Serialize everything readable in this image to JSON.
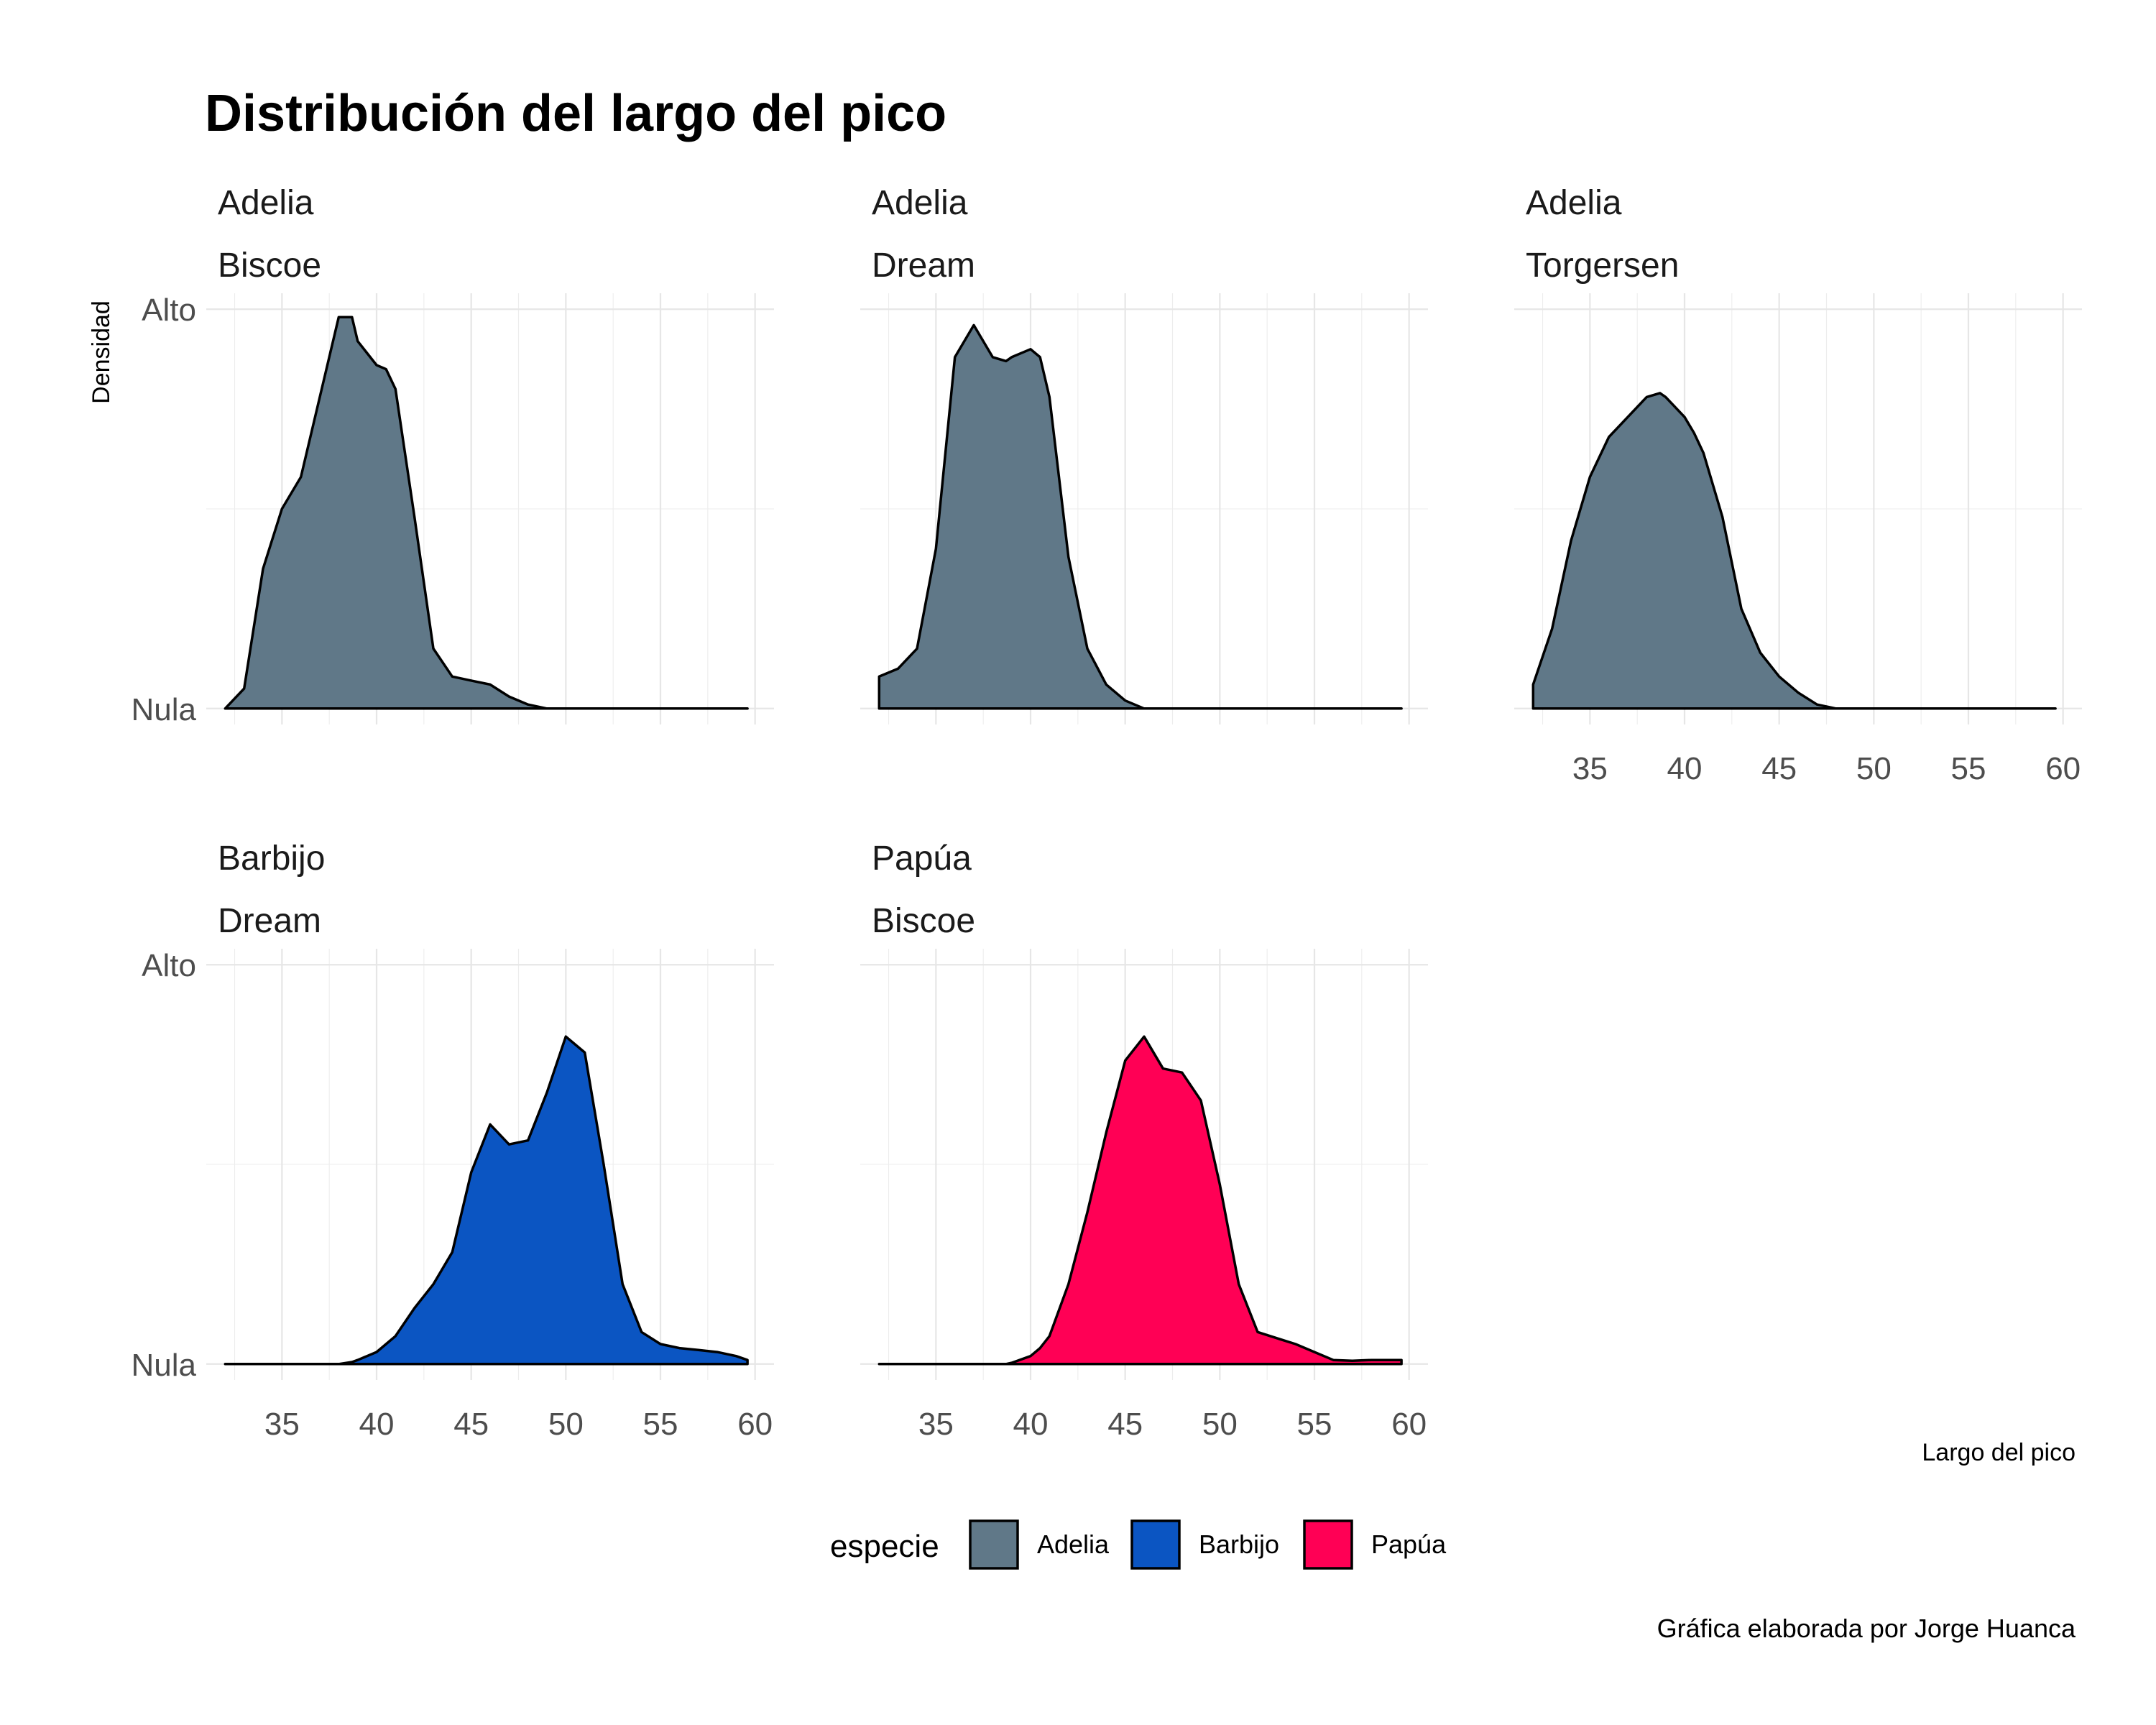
{
  "chart_data": {
    "type": "area",
    "title": "Distribución del largo del pico",
    "xlabel": "Largo del pico",
    "ylabel": "Densidad",
    "xlim": [
      31,
      61
    ],
    "x_ticks": [
      35,
      40,
      45,
      50,
      55,
      60
    ],
    "y_ticks": [
      {
        "value": 0,
        "label": "Nula"
      },
      {
        "value": 1,
        "label": "Alto"
      }
    ],
    "ylim": [
      -0.04,
      1.04
    ],
    "grid": true,
    "legend": {
      "title": "especie",
      "position": "bottom",
      "items": [
        {
          "label": "Adelia",
          "color": "#607888"
        },
        {
          "label": "Barbijo",
          "color": "#0b55c2"
        },
        {
          "label": "Papúa",
          "color": "#ff0055"
        }
      ]
    },
    "caption": "Gráfica elaborada por Jorge Huanca",
    "x": [
      32,
      33,
      34,
      35,
      36,
      37,
      38,
      38.7,
      39,
      40,
      40.5,
      41,
      42,
      43,
      44,
      45,
      46,
      47,
      48,
      49,
      50,
      51,
      52,
      53,
      54,
      55,
      56,
      57,
      58,
      59,
      59.6
    ],
    "panels": [
      {
        "strip": [
          "Adelia",
          "Biscoe"
        ],
        "species": "Adelia",
        "show_x_ticks": false,
        "show_y_ticks": true,
        "y": [
          0.0,
          0.05,
          0.35,
          0.5,
          0.58,
          0.78,
          0.98,
          0.98,
          0.92,
          0.86,
          0.85,
          0.8,
          0.48,
          0.15,
          0.08,
          0.07,
          0.06,
          0.03,
          0.01,
          0.0,
          0.0,
          0.0,
          0.0,
          0.0,
          0.0,
          0.0,
          0.0,
          0.0,
          0.0,
          0.0,
          0.0
        ]
      },
      {
        "strip": [
          "Adelia",
          "Dream"
        ],
        "species": "Adelia",
        "show_x_ticks": false,
        "show_y_ticks": false,
        "y": [
          0.08,
          0.1,
          0.15,
          0.4,
          0.88,
          0.96,
          0.88,
          0.87,
          0.88,
          0.9,
          0.88,
          0.78,
          0.38,
          0.15,
          0.06,
          0.02,
          0.0,
          0.0,
          0.0,
          0.0,
          0.0,
          0.0,
          0.0,
          0.0,
          0.0,
          0.0,
          0.0,
          0.0,
          0.0,
          0.0,
          0.0
        ]
      },
      {
        "strip": [
          "Adelia",
          "Torgersen"
        ],
        "species": "Adelia",
        "show_x_ticks": true,
        "show_y_ticks": false,
        "y": [
          0.06,
          0.2,
          0.42,
          0.58,
          0.68,
          0.73,
          0.78,
          0.79,
          0.78,
          0.73,
          0.69,
          0.64,
          0.48,
          0.25,
          0.14,
          0.08,
          0.04,
          0.01,
          0.0,
          0.0,
          0.0,
          0.0,
          0.0,
          0.0,
          0.0,
          0.0,
          0.0,
          0.0,
          0.0,
          0.0,
          0.0
        ]
      },
      {
        "strip": [
          "Barbijo",
          "Dream"
        ],
        "species": "Barbijo",
        "show_x_ticks": true,
        "show_y_ticks": true,
        "y": [
          0.0,
          0.0,
          0.0,
          0.0,
          0.0,
          0.0,
          0.0,
          0.005,
          0.01,
          0.03,
          0.05,
          0.07,
          0.14,
          0.2,
          0.28,
          0.48,
          0.6,
          0.55,
          0.56,
          0.68,
          0.82,
          0.78,
          0.5,
          0.2,
          0.08,
          0.05,
          0.04,
          0.035,
          0.03,
          0.02,
          0.01
        ]
      },
      {
        "strip": [
          "Papúa",
          "Biscoe"
        ],
        "species": "Papúa",
        "show_x_ticks": true,
        "show_y_ticks": false,
        "y": [
          0.0,
          0.0,
          0.0,
          0.0,
          0.0,
          0.0,
          0.0,
          0.0,
          0.003,
          0.02,
          0.04,
          0.07,
          0.2,
          0.38,
          0.58,
          0.76,
          0.82,
          0.74,
          0.73,
          0.66,
          0.45,
          0.2,
          0.08,
          0.065,
          0.05,
          0.03,
          0.01,
          0.008,
          0.01,
          0.01,
          0.01
        ]
      }
    ]
  }
}
